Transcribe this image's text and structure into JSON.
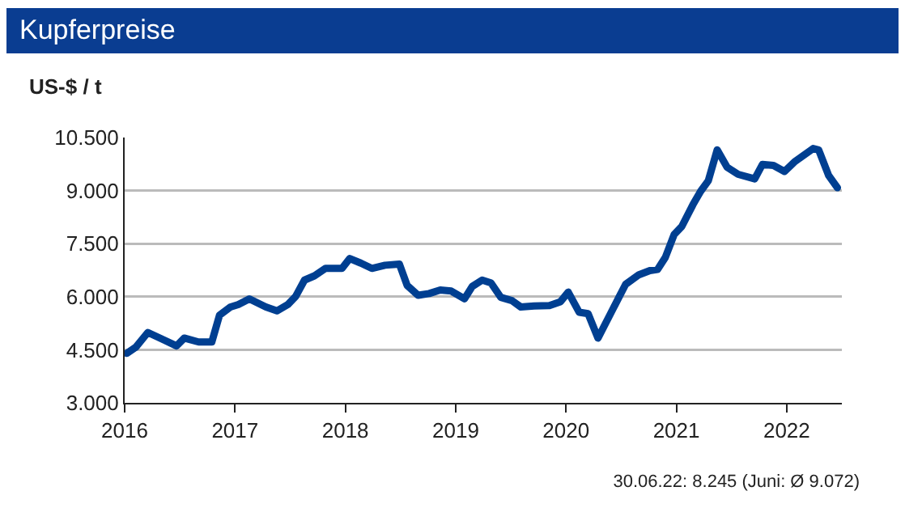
{
  "chart_data": {
    "type": "line",
    "title": "Kupferpreise",
    "ylabel": "US-$ / t",
    "annotations": [
      "30.06.22: 8.245 (Juni: Ø 9.072)"
    ],
    "series": [
      {
        "color": "#003f91",
        "x": [
          2016.02,
          2016.1,
          2016.21,
          2016.34,
          2016.47,
          2016.54,
          2016.67,
          2016.79,
          2016.86,
          2016.96,
          2017.03,
          2017.13,
          2017.28,
          2017.38,
          2017.48,
          2017.55,
          2017.63,
          2017.72,
          2017.82,
          2017.97,
          2018.04,
          2018.14,
          2018.24,
          2018.36,
          2018.49,
          2018.56,
          2018.66,
          2018.76,
          2018.86,
          2018.96,
          2019.08,
          2019.15,
          2019.24,
          2019.32,
          2019.41,
          2019.51,
          2019.59,
          2019.71,
          2019.85,
          2019.95,
          2020.02,
          2020.12,
          2020.2,
          2020.29,
          2020.41,
          2020.54,
          2020.66,
          2020.76,
          2020.83,
          2020.9,
          2020.98,
          2021.05,
          2021.15,
          2021.22,
          2021.29,
          2021.37,
          2021.46,
          2021.56,
          2021.71,
          2021.78,
          2021.88,
          2021.98,
          2022.07,
          2022.24,
          2022.29,
          2022.38,
          2022.46
        ],
        "values": [
          4400,
          4570,
          4990,
          4800,
          4610,
          4830,
          4720,
          4720,
          5480,
          5710,
          5780,
          5940,
          5710,
          5600,
          5780,
          6010,
          6470,
          6590,
          6800,
          6800,
          7080,
          6950,
          6800,
          6890,
          6920,
          6320,
          6040,
          6090,
          6190,
          6160,
          5940,
          6290,
          6470,
          6390,
          5980,
          5890,
          5710,
          5740,
          5750,
          5860,
          6130,
          5560,
          5520,
          4830,
          5560,
          6350,
          6620,
          6740,
          6770,
          7110,
          7760,
          7990,
          8600,
          8980,
          9280,
          10150,
          9660,
          9460,
          9330,
          9740,
          9710,
          9540,
          9810,
          10190,
          10150,
          9430,
          9080
        ]
      }
    ],
    "xlim": [
      2016,
      2022.5
    ],
    "xticks": [
      2016,
      2017,
      2018,
      2019,
      2020,
      2021,
      2022
    ],
    "ylim": [
      3000,
      10500
    ],
    "yticks": [
      {
        "value": 3000,
        "label": "3.000"
      },
      {
        "value": 4500,
        "label": "4.500"
      },
      {
        "value": 6000,
        "label": "6.000"
      },
      {
        "value": 7500,
        "label": "7.500"
      },
      {
        "value": 9000,
        "label": "9.000"
      },
      {
        "value": 10500,
        "label": "10.500"
      }
    ],
    "grid": "y",
    "marker": "none",
    "line_style": "solid"
  }
}
